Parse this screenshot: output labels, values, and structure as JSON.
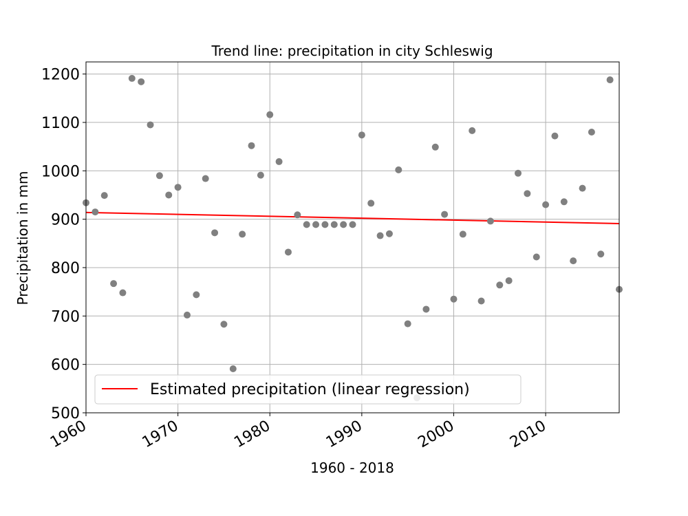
{
  "chart_data": {
    "type": "scatter",
    "title": "Trend line: precipitation in city Schleswig",
    "xlabel": "1960 - 2018",
    "ylabel": "Precipitation in mm",
    "xlim": [
      1960,
      2018
    ],
    "ylim": [
      500,
      1225
    ],
    "xticks": [
      1960,
      1970,
      1980,
      1990,
      2000,
      2010
    ],
    "yticks": [
      500,
      600,
      700,
      800,
      900,
      1000,
      1100,
      1200
    ],
    "grid": true,
    "legend_position": "lower-left",
    "point_color": "#808080",
    "line_color": "#ff0000",
    "series": [
      {
        "type": "scatter",
        "x": [
          1960,
          1961,
          1962,
          1963,
          1964,
          1965,
          1966,
          1967,
          1968,
          1969,
          1970,
          1971,
          1972,
          1973,
          1974,
          1975,
          1976,
          1977,
          1978,
          1979,
          1980,
          1981,
          1982,
          1983,
          1984,
          1985,
          1986,
          1987,
          1988,
          1989,
          1990,
          1991,
          1992,
          1993,
          1994,
          1995,
          1996,
          1997,
          1998,
          1999,
          2000,
          2001,
          2002,
          2003,
          2004,
          2005,
          2006,
          2007,
          2008,
          2009,
          2010,
          2011,
          2012,
          2013,
          2014,
          2015,
          2016,
          2017,
          2018
        ],
        "y": [
          934,
          915,
          949,
          767,
          748,
          1191,
          1184,
          1095,
          990,
          950,
          966,
          702,
          744,
          984,
          872,
          683,
          591,
          869,
          1052,
          991,
          1116,
          1019,
          832,
          909,
          889,
          889,
          889,
          889,
          889,
          889,
          1074,
          933,
          866,
          870,
          1002,
          684,
          531,
          714,
          1049,
          910,
          735,
          869,
          1083,
          731,
          896,
          764,
          773,
          995,
          953,
          822,
          930,
          1072,
          936,
          814,
          964,
          1080,
          828,
          1188,
          755
        ]
      },
      {
        "name": "Estimated precipitation (linear regression)",
        "type": "line",
        "x": [
          1960,
          2018
        ],
        "y": [
          914,
          891
        ]
      }
    ]
  }
}
